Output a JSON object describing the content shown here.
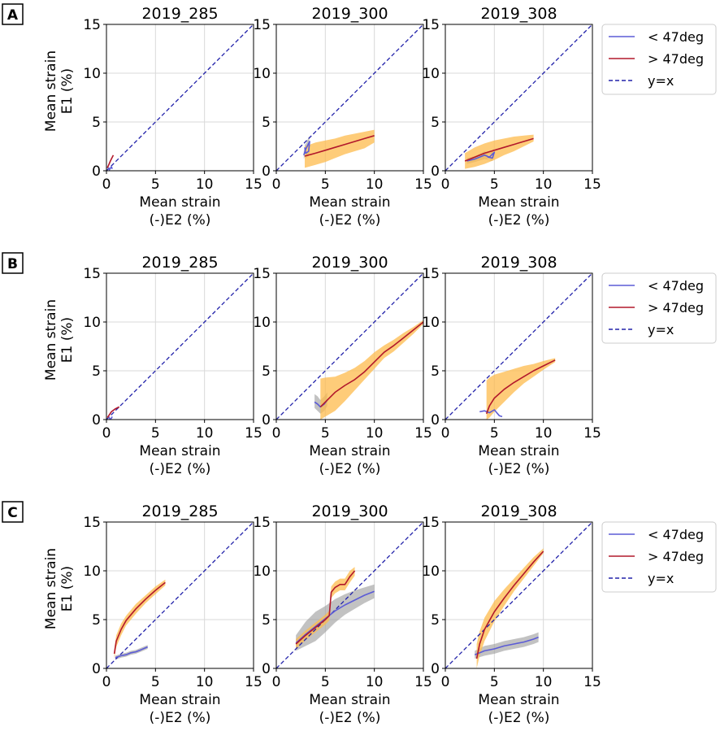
{
  "figure": {
    "xlabel_line1": "Mean strain",
    "xlabel_line2": "(-)E2 (%)",
    "ylabel_line1": "Mean strain",
    "ylabel_line2": "E1 (%)",
    "legend": {
      "below": "< 47deg",
      "above": "> 47deg",
      "identity": "y=x"
    },
    "colors": {
      "below": "#5b5bd6",
      "above": "#b2182b",
      "identity": "#2222aa",
      "band_above": "#fdbb4c",
      "band_below": "#9a9a9a",
      "grid": "#d9d9d9"
    }
  },
  "chart_data": [
    {
      "row": "A",
      "panels": [
        {
          "title": "2019_285",
          "type": "line",
          "xlim": [
            0,
            15
          ],
          "ylim": [
            0,
            15
          ],
          "xticks": [
            "0",
            "5",
            "10",
            "15"
          ],
          "yticks": [
            "0",
            "5",
            "10",
            "15"
          ],
          "series": [
            {
              "name": "< 47deg",
              "band": false,
              "x": [
                0.1,
                0.3,
                0.5,
                0.6
              ],
              "y": [
                0.4,
                0.1,
                0.4,
                0.2
              ]
            },
            {
              "name": "> 47deg",
              "band": false,
              "x": [
                0.1,
                0.4,
                0.7
              ],
              "y": [
                0.3,
                1.0,
                1.6
              ]
            }
          ]
        },
        {
          "title": "2019_300",
          "type": "line",
          "xlim": [
            0,
            15
          ],
          "ylim": [
            0,
            15
          ],
          "xticks": [
            "0",
            "5",
            "10",
            "15"
          ],
          "yticks": [
            "0",
            "5",
            "10",
            "15"
          ],
          "series": [
            {
              "name": "< 47deg",
              "band": true,
              "x": [
                2.8,
                3.0,
                3.2,
                3.4,
                3.3,
                3.0,
                2.9
              ],
              "y": [
                1.6,
                2.2,
                2.6,
                3.0,
                2.0,
                1.8,
                2.4
              ],
              "lo": [
                1.2,
                1.7,
                2.0,
                2.3,
                1.5,
                1.3,
                1.8
              ],
              "hi": [
                2.0,
                2.7,
                3.2,
                3.6,
                2.5,
                2.3,
                3.0
              ]
            },
            {
              "name": "> 47deg",
              "band": true,
              "x": [
                2.9,
                4.0,
                5.0,
                6.0,
                7.0,
                8.0,
                9.0,
                10.0
              ],
              "y": [
                1.5,
                1.8,
                2.1,
                2.4,
                2.7,
                3.0,
                3.3,
                3.6
              ],
              "lo": [
                0.3,
                0.6,
                0.9,
                1.3,
                1.7,
                2.0,
                2.3,
                2.9
              ],
              "hi": [
                2.5,
                2.9,
                3.1,
                3.3,
                3.6,
                3.8,
                4.0,
                4.2
              ]
            }
          ]
        },
        {
          "title": "2019_308",
          "type": "line",
          "xlim": [
            0,
            15
          ],
          "ylim": [
            0,
            15
          ],
          "xticks": [
            "0",
            "5",
            "10",
            "15"
          ],
          "yticks": [
            "0",
            "5",
            "10",
            "15"
          ],
          "series": [
            {
              "name": "< 47deg",
              "band": true,
              "x": [
                2.2,
                3.0,
                4.0,
                4.5,
                5.0,
                4.8,
                4.3
              ],
              "y": [
                1.0,
                1.2,
                1.6,
                1.4,
                1.9,
                1.3,
                1.4
              ],
              "lo": [
                0.7,
                0.9,
                1.2,
                1.1,
                1.5,
                1.0,
                1.1
              ],
              "hi": [
                1.3,
                1.5,
                2.0,
                1.8,
                2.3,
                1.7,
                1.7
              ]
            },
            {
              "name": "> 47deg",
              "band": true,
              "x": [
                2.0,
                3.0,
                4.0,
                5.0,
                6.0,
                7.0,
                8.0,
                9.0
              ],
              "y": [
                1.0,
                1.4,
                1.8,
                2.1,
                2.4,
                2.7,
                3.0,
                3.3
              ],
              "lo": [
                0.2,
                0.4,
                0.7,
                1.1,
                1.6,
                2.0,
                2.5,
                3.0
              ],
              "hi": [
                1.8,
                2.4,
                2.8,
                3.1,
                3.3,
                3.5,
                3.6,
                3.7
              ]
            }
          ]
        }
      ]
    },
    {
      "row": "B",
      "panels": [
        {
          "title": "2019_285",
          "type": "line",
          "xlim": [
            0,
            15
          ],
          "ylim": [
            0,
            15
          ],
          "xticks": [
            "0",
            "5",
            "10",
            "15"
          ],
          "yticks": [
            "0",
            "5",
            "10",
            "15"
          ],
          "series": [
            {
              "name": "< 47deg",
              "band": false,
              "x": [
                0.2,
                0.4,
                0.6
              ],
              "y": [
                0.3,
                0.0,
                0.3
              ]
            },
            {
              "name": "> 47deg",
              "band": false,
              "x": [
                0.1,
                0.5,
                0.9,
                1.3
              ],
              "y": [
                0.2,
                0.8,
                1.1,
                1.3
              ]
            }
          ]
        },
        {
          "title": "2019_300",
          "type": "line",
          "xlim": [
            0,
            15
          ],
          "ylim": [
            0,
            15
          ],
          "xticks": [
            "0",
            "5",
            "10",
            "15"
          ],
          "yticks": [
            "0",
            "5",
            "10",
            "15"
          ],
          "series": [
            {
              "name": "< 47deg",
              "band": true,
              "x": [
                3.9,
                4.2,
                4.5,
                4.9,
                5.2
              ],
              "y": [
                1.8,
                1.6,
                1.3,
                1.6,
                2.0
              ],
              "lo": [
                1.2,
                0.9,
                0.6,
                0.9,
                1.4
              ],
              "hi": [
                2.6,
                2.4,
                2.0,
                2.4,
                2.8
              ]
            },
            {
              "name": "> 47deg",
              "band": true,
              "x": [
                4.5,
                5.0,
                6.0,
                7.0,
                8.0,
                9.0,
                10.0,
                11.0,
                12.0,
                13.0,
                14.0,
                15.0
              ],
              "y": [
                1.3,
                1.8,
                2.8,
                3.5,
                4.1,
                4.9,
                5.9,
                6.9,
                7.6,
                8.4,
                9.2,
                10.0
              ],
              "lo": [
                0.0,
                0.3,
                0.9,
                1.9,
                3.0,
                4.1,
                5.2,
                6.3,
                7.0,
                7.9,
                8.8,
                9.8
              ],
              "hi": [
                4.2,
                4.3,
                4.4,
                4.8,
                5.3,
                6.0,
                6.9,
                7.6,
                8.2,
                8.9,
                9.5,
                10.2
              ]
            }
          ]
        },
        {
          "title": "2019_308",
          "type": "line",
          "xlim": [
            0,
            15
          ],
          "ylim": [
            0,
            15
          ],
          "xticks": [
            "0",
            "5",
            "10",
            "15"
          ],
          "yticks": [
            "0",
            "5",
            "10",
            "15"
          ],
          "series": [
            {
              "name": "< 47deg",
              "band": false,
              "x": [
                3.5,
                4.0,
                4.5,
                5.0,
                5.5,
                5.8
              ],
              "y": [
                0.8,
                0.9,
                0.7,
                1.0,
                0.4,
                0.3
              ]
            },
            {
              "name": "> 47deg",
              "band": true,
              "x": [
                4.2,
                4.5,
                5.0,
                6.0,
                7.0,
                8.0,
                9.0,
                10.0,
                11.2
              ],
              "y": [
                0.6,
                1.4,
                2.2,
                3.1,
                3.8,
                4.4,
                5.0,
                5.5,
                6.1
              ],
              "lo": [
                0.0,
                0.2,
                0.8,
                1.8,
                2.8,
                3.7,
                4.4,
                5.1,
                5.9
              ],
              "hi": [
                4.0,
                4.3,
                4.6,
                4.9,
                5.2,
                5.5,
                5.7,
                6.0,
                6.3
              ]
            }
          ]
        }
      ]
    },
    {
      "row": "C",
      "panels": [
        {
          "title": "2019_285",
          "type": "line",
          "xlim": [
            0,
            15
          ],
          "ylim": [
            0,
            15
          ],
          "xticks": [
            "0",
            "5",
            "10",
            "15"
          ],
          "yticks": [
            "0",
            "5",
            "10",
            "15"
          ],
          "series": [
            {
              "name": "< 47deg",
              "band": true,
              "x": [
                0.9,
                1.5,
                2.0,
                2.5,
                3.0,
                3.5,
                4.2
              ],
              "y": [
                1.1,
                1.3,
                1.4,
                1.6,
                1.7,
                1.9,
                2.2
              ],
              "lo": [
                0.9,
                1.1,
                1.2,
                1.4,
                1.5,
                1.7,
                2.0
              ],
              "hi": [
                1.3,
                1.5,
                1.6,
                1.8,
                1.9,
                2.1,
                2.4
              ]
            },
            {
              "name": "> 47deg",
              "band": true,
              "x": [
                0.8,
                1.0,
                1.5,
                2.0,
                3.0,
                4.0,
                5.0,
                6.0
              ],
              "y": [
                1.5,
                2.8,
                4.0,
                4.9,
                6.1,
                7.1,
                8.0,
                8.8
              ],
              "lo": [
                1.0,
                2.2,
                3.4,
                4.4,
                5.6,
                6.7,
                7.6,
                8.5
              ],
              "hi": [
                2.0,
                3.4,
                4.6,
                5.4,
                6.6,
                7.5,
                8.4,
                9.1
              ]
            }
          ]
        },
        {
          "title": "2019_300",
          "type": "line",
          "xlim": [
            0,
            15
          ],
          "ylim": [
            0,
            15
          ],
          "xticks": [
            "0",
            "5",
            "10",
            "15"
          ],
          "yticks": [
            "0",
            "5",
            "10",
            "15"
          ],
          "series": [
            {
              "name": "< 47deg",
              "band": true,
              "x": [
                2.0,
                3.0,
                4.0,
                5.0,
                6.0,
                7.0,
                8.0,
                9.0,
                10.0
              ],
              "y": [
                2.6,
                3.5,
                4.3,
                5.1,
                5.9,
                6.5,
                7.0,
                7.5,
                7.9
              ],
              "lo": [
                1.8,
                2.3,
                2.8,
                3.7,
                4.7,
                5.5,
                6.1,
                6.7,
                7.2
              ],
              "hi": [
                3.4,
                4.8,
                5.8,
                6.4,
                7.1,
                7.6,
                8.0,
                8.3,
                8.6
              ]
            },
            {
              "name": "> 47deg",
              "band": true,
              "x": [
                2.0,
                3.0,
                4.0,
                5.0,
                5.4,
                5.6,
                6.0,
                6.5,
                7.0,
                7.5,
                8.0
              ],
              "y": [
                2.5,
                3.4,
                4.2,
                5.0,
                5.4,
                7.8,
                8.3,
                8.6,
                8.6,
                9.4,
                10.0
              ],
              "lo": [
                2.0,
                2.9,
                3.7,
                4.5,
                4.9,
                7.2,
                7.7,
                8.0,
                8.0,
                8.8,
                9.5
              ],
              "hi": [
                3.0,
                3.9,
                4.7,
                5.5,
                5.9,
                8.4,
                8.9,
                9.2,
                9.2,
                10.0,
                10.4
              ]
            }
          ]
        },
        {
          "title": "2019_308",
          "type": "line",
          "xlim": [
            0,
            15
          ],
          "ylim": [
            0,
            15
          ],
          "xticks": [
            "0",
            "5",
            "10",
            "15"
          ],
          "yticks": [
            "0",
            "5",
            "10",
            "15"
          ],
          "series": [
            {
              "name": "< 47deg",
              "band": true,
              "x": [
                3.0,
                4.0,
                5.0,
                6.0,
                7.0,
                8.0,
                9.0,
                9.5
              ],
              "y": [
                1.4,
                1.8,
                2.0,
                2.3,
                2.5,
                2.7,
                3.0,
                3.2
              ],
              "lo": [
                1.0,
                1.3,
                1.5,
                1.8,
                2.0,
                2.2,
                2.5,
                2.7
              ],
              "hi": [
                1.8,
                2.3,
                2.5,
                2.8,
                3.0,
                3.2,
                3.5,
                3.7
              ]
            },
            {
              "name": "> 47deg",
              "band": true,
              "x": [
                3.2,
                3.5,
                4.0,
                5.0,
                6.0,
                7.0,
                8.0,
                9.0,
                10.0
              ],
              "y": [
                1.0,
                2.5,
                4.0,
                5.8,
                7.2,
                8.5,
                9.7,
                10.9,
                12.0
              ],
              "lo": [
                0.0,
                1.3,
                2.8,
                4.8,
                6.4,
                7.9,
                9.2,
                10.5,
                11.8
              ],
              "hi": [
                2.5,
                3.8,
                5.2,
                6.9,
                8.1,
                9.2,
                10.3,
                11.4,
                12.3
              ]
            }
          ]
        }
      ]
    }
  ]
}
